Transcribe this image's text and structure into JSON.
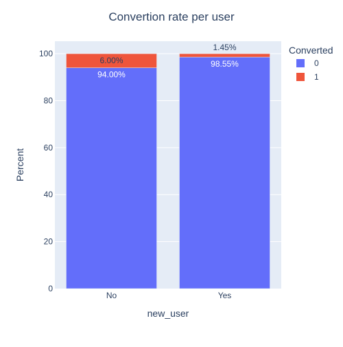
{
  "chart_data": {
    "type": "bar",
    "stacked": true,
    "title": "Convertion rate per user",
    "xlabel": "new_user",
    "ylabel": "Percent",
    "categories": [
      "No",
      "Yes"
    ],
    "ylim": [
      0,
      100
    ],
    "yticks": [
      0,
      20,
      40,
      60,
      80,
      100
    ],
    "grid": true,
    "legend": {
      "title": "Converted",
      "position": "top-right"
    },
    "series": [
      {
        "name": "0",
        "color": "#636efa",
        "values": [
          94.0,
          98.55
        ],
        "labels": [
          "94.00%",
          "98.55%"
        ]
      },
      {
        "name": "1",
        "color": "#ef553b",
        "values": [
          6.0,
          1.45
        ],
        "labels": [
          "6.00%",
          "1.45%"
        ]
      }
    ],
    "colors": {
      "plot_bg": "#e5ecf6",
      "grid": "#ffffff",
      "text": "#2a3f5f"
    }
  }
}
